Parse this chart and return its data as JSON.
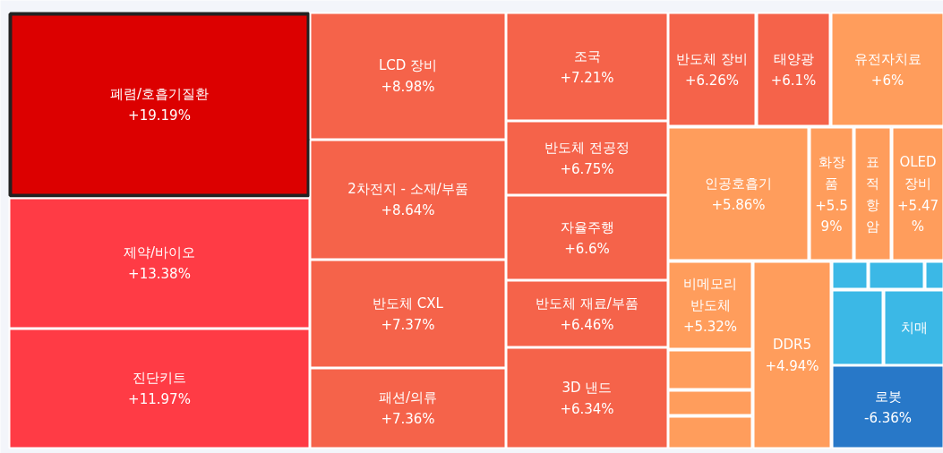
{
  "chart_data": {
    "type": "other",
    "categories": [
      "폐렴/호흡기질환",
      "제약/바이오",
      "진단키트",
      "LCD 장비",
      "2차전지 - 소재/부품",
      "반도체 CXL",
      "패션/의류",
      "조국",
      "반도체 전공정",
      "자율주행",
      "반도체 재료/부품",
      "3D 낸드",
      "반도체 장비",
      "태양광",
      "유전자치료",
      "인공호흡기",
      "화장품",
      "표적항암",
      "OLED 장비",
      "비메모리 반도체",
      null,
      null,
      null,
      "DDR5",
      null,
      null,
      null,
      null,
      "치매",
      "로봇"
    ],
    "values": [
      19.19,
      13.38,
      11.97,
      8.98,
      8.64,
      7.37,
      7.36,
      7.21,
      6.75,
      6.6,
      6.46,
      6.34,
      6.26,
      6.1,
      6,
      5.86,
      5.59,
      null,
      5.47,
      5.32,
      null,
      null,
      null,
      4.94,
      null,
      null,
      null,
      null,
      null,
      -6.36
    ],
    "value_labels": [
      "+19.19%",
      "+13.38%",
      "+11.97%",
      "+8.98%",
      "+8.64%",
      "+7.37%",
      "+7.36%",
      "+7.21%",
      "+6.75%",
      "+6.6%",
      "+6.46%",
      "+6.34%",
      "+6.26%",
      "+6.1%",
      "+6%",
      "+5.86%",
      "+5.59%",
      null,
      "+5.47%",
      "+5.32%",
      null,
      null,
      null,
      "+4.94%",
      null,
      null,
      null,
      null,
      null,
      "-6.36%"
    ],
    "colors": [
      "#dc0000",
      "#ff3b45",
      "#ff3b45",
      "#f5634a",
      "#f5634a",
      "#f5634a",
      "#f5634a",
      "#f5634a",
      "#f5634a",
      "#f5634a",
      "#f5634a",
      "#f5634a",
      "#f5634a",
      "#f5634a",
      "#ff9d5c",
      "#ff9d5c",
      "#ff9d5c",
      "#ff9d5c",
      "#ff9d5c",
      "#ff9d5c",
      "#ff9d5c",
      "#ff9d5c",
      "#ff9d5c",
      "#ff9d5c",
      "#3bb8e6",
      "#3bb8e6",
      "#3bb8e6",
      "#3bb8e6",
      "#3bb8e6",
      "#2878c8"
    ]
  }
}
